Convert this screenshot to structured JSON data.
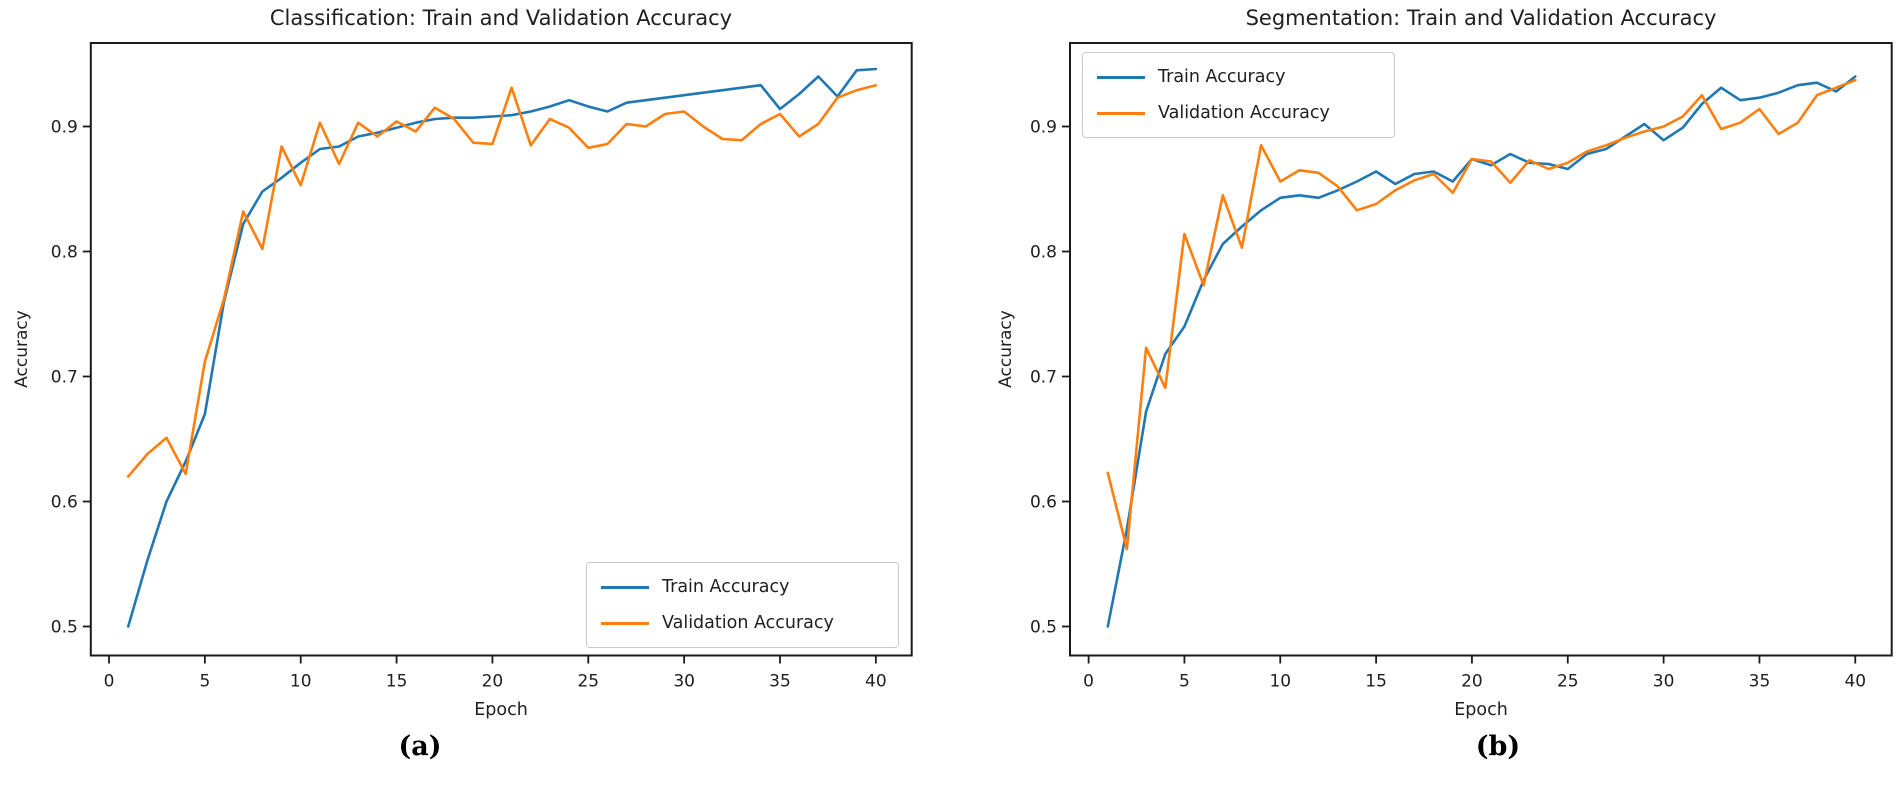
{
  "figure": {
    "background": "#ffffff",
    "text_color": "#202020",
    "spine_color": "#1a1a1a"
  },
  "chart_data": [
    {
      "type": "line",
      "title": "Classification: Train and Validation Accuracy",
      "xlabel": "Epoch",
      "ylabel": "Accuracy",
      "caption": "(a)",
      "legend_position": "lower right",
      "grid": false,
      "x": [
        1,
        2,
        3,
        4,
        5,
        6,
        7,
        8,
        9,
        10,
        11,
        12,
        13,
        14,
        15,
        16,
        17,
        18,
        19,
        20,
        21,
        22,
        23,
        24,
        25,
        26,
        27,
        28,
        29,
        30,
        31,
        32,
        33,
        34,
        35,
        36,
        37,
        38,
        39,
        40
      ],
      "xticks": [
        0,
        5,
        10,
        15,
        20,
        25,
        30,
        35,
        40
      ],
      "yticks": [
        0.5,
        0.6,
        0.7,
        0.8,
        0.9
      ],
      "xlim": [
        -0.95,
        41.87
      ],
      "ylim": [
        0.4768,
        0.9668
      ],
      "series": [
        {
          "name": "Train Accuracy",
          "color": "#1f77b4",
          "values": [
            0.5,
            0.553,
            0.6,
            0.632,
            0.67,
            0.76,
            0.822,
            0.848,
            0.859,
            0.871,
            0.882,
            0.884,
            0.892,
            0.895,
            0.899,
            0.903,
            0.906,
            0.907,
            0.907,
            0.908,
            0.909,
            0.912,
            0.916,
            0.921,
            0.916,
            0.912,
            0.919,
            0.921,
            0.923,
            0.925,
            0.927,
            0.929,
            0.931,
            0.933,
            0.914,
            0.926,
            0.94,
            0.924,
            0.945,
            0.946
          ]
        },
        {
          "name": "Validation Accuracy",
          "color": "#ff7f0e",
          "values": [
            0.62,
            0.638,
            0.651,
            0.622,
            0.712,
            0.762,
            0.832,
            0.802,
            0.884,
            0.853,
            0.903,
            0.87,
            0.903,
            0.892,
            0.904,
            0.896,
            0.915,
            0.906,
            0.887,
            0.886,
            0.931,
            0.885,
            0.906,
            0.899,
            0.883,
            0.886,
            0.902,
            0.9,
            0.91,
            0.912,
            0.9,
            0.89,
            0.889,
            0.902,
            0.91,
            0.892,
            0.902,
            0.923,
            0.929,
            0.933
          ]
        }
      ]
    },
    {
      "type": "line",
      "title": "Segmentation: Train and Validation Accuracy",
      "xlabel": "Epoch",
      "ylabel": "Accuracy",
      "caption": "(b)",
      "legend_position": "upper left",
      "grid": false,
      "x": [
        1,
        2,
        3,
        4,
        5,
        6,
        7,
        8,
        9,
        10,
        11,
        12,
        13,
        14,
        15,
        16,
        17,
        18,
        19,
        20,
        21,
        22,
        23,
        24,
        25,
        26,
        27,
        28,
        29,
        30,
        31,
        32,
        33,
        34,
        35,
        36,
        37,
        38,
        39,
        40
      ],
      "xticks": [
        0,
        5,
        10,
        15,
        20,
        25,
        30,
        35,
        40
      ],
      "yticks": [
        0.5,
        0.6,
        0.7,
        0.8,
        0.9
      ],
      "xlim": [
        -0.97,
        41.9
      ],
      "ylim": [
        0.4768,
        0.9668
      ],
      "series": [
        {
          "name": "Train Accuracy",
          "color": "#1f77b4",
          "values": [
            0.5,
            0.578,
            0.672,
            0.718,
            0.74,
            0.777,
            0.806,
            0.82,
            0.833,
            0.843,
            0.845,
            0.843,
            0.849,
            0.856,
            0.864,
            0.854,
            0.862,
            0.864,
            0.856,
            0.874,
            0.869,
            0.878,
            0.871,
            0.87,
            0.866,
            0.878,
            0.882,
            0.892,
            0.902,
            0.889,
            0.899,
            0.918,
            0.931,
            0.921,
            0.923,
            0.927,
            0.933,
            0.935,
            0.928,
            0.94
          ]
        },
        {
          "name": "Validation Accuracy",
          "color": "#ff7f0e",
          "values": [
            0.623,
            0.562,
            0.723,
            0.691,
            0.814,
            0.773,
            0.845,
            0.803,
            0.885,
            0.856,
            0.865,
            0.863,
            0.852,
            0.833,
            0.838,
            0.849,
            0.857,
            0.862,
            0.847,
            0.874,
            0.872,
            0.855,
            0.873,
            0.866,
            0.871,
            0.88,
            0.885,
            0.891,
            0.896,
            0.9,
            0.908,
            0.925,
            0.898,
            0.903,
            0.914,
            0.894,
            0.903,
            0.925,
            0.931,
            0.937
          ]
        }
      ]
    }
  ]
}
